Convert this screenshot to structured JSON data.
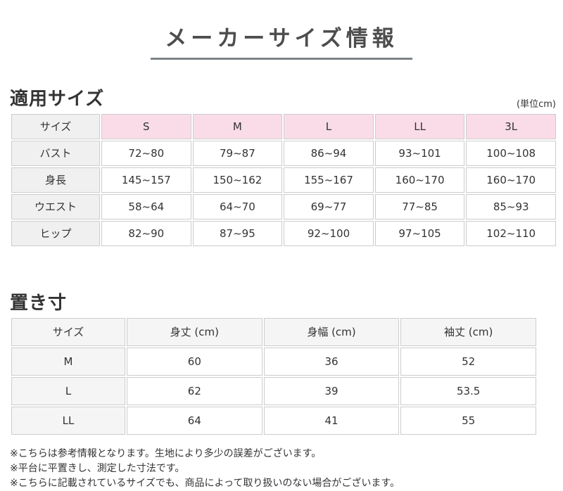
{
  "page": {
    "title": "メーカーサイズ情報"
  },
  "applied_sizes": {
    "heading": "適用サイズ",
    "unit_note": "(単位cm)",
    "table": {
      "corner_label": "サイズ",
      "columns": [
        "S",
        "M",
        "L",
        "LL",
        "3L"
      ],
      "rows": [
        {
          "label": "バスト",
          "values": [
            "72~80",
            "79~87",
            "86~94",
            "93~101",
            "100~108"
          ]
        },
        {
          "label": "身長",
          "values": [
            "145~157",
            "150~162",
            "155~167",
            "160~170",
            "160~170"
          ]
        },
        {
          "label": "ウエスト",
          "values": [
            "58~64",
            "64~70",
            "69~77",
            "77~85",
            "85~93"
          ]
        },
        {
          "label": "ヒップ",
          "values": [
            "82~90",
            "87~95",
            "92~100",
            "97~105",
            "102~110"
          ]
        }
      ]
    }
  },
  "flat_measurements": {
    "heading": "置き寸",
    "table": {
      "columns": [
        "サイズ",
        "身丈 (cm)",
        "身幅 (cm)",
        "袖丈 (cm)"
      ],
      "rows": [
        {
          "label": "M",
          "values": [
            "60",
            "36",
            "52"
          ]
        },
        {
          "label": "L",
          "values": [
            "62",
            "39",
            "53.5"
          ]
        },
        {
          "label": "LL",
          "values": [
            "64",
            "41",
            "55"
          ]
        }
      ]
    }
  },
  "notes": [
    "※こちらは参考情報となります。生地により多少の誤差がございます。",
    "※平台に平置きし、測定した寸法です。",
    "※こちらに記載されているサイズでも、商品によって取り扱いのない場合がございます。"
  ],
  "colors": {
    "pink_header": "#fadce8",
    "gray_header": "#f0f0f0",
    "gray_header2": "#f5f5f5",
    "border": "#cccccc",
    "text": "#333333",
    "title_underline": "#7d8488"
  }
}
